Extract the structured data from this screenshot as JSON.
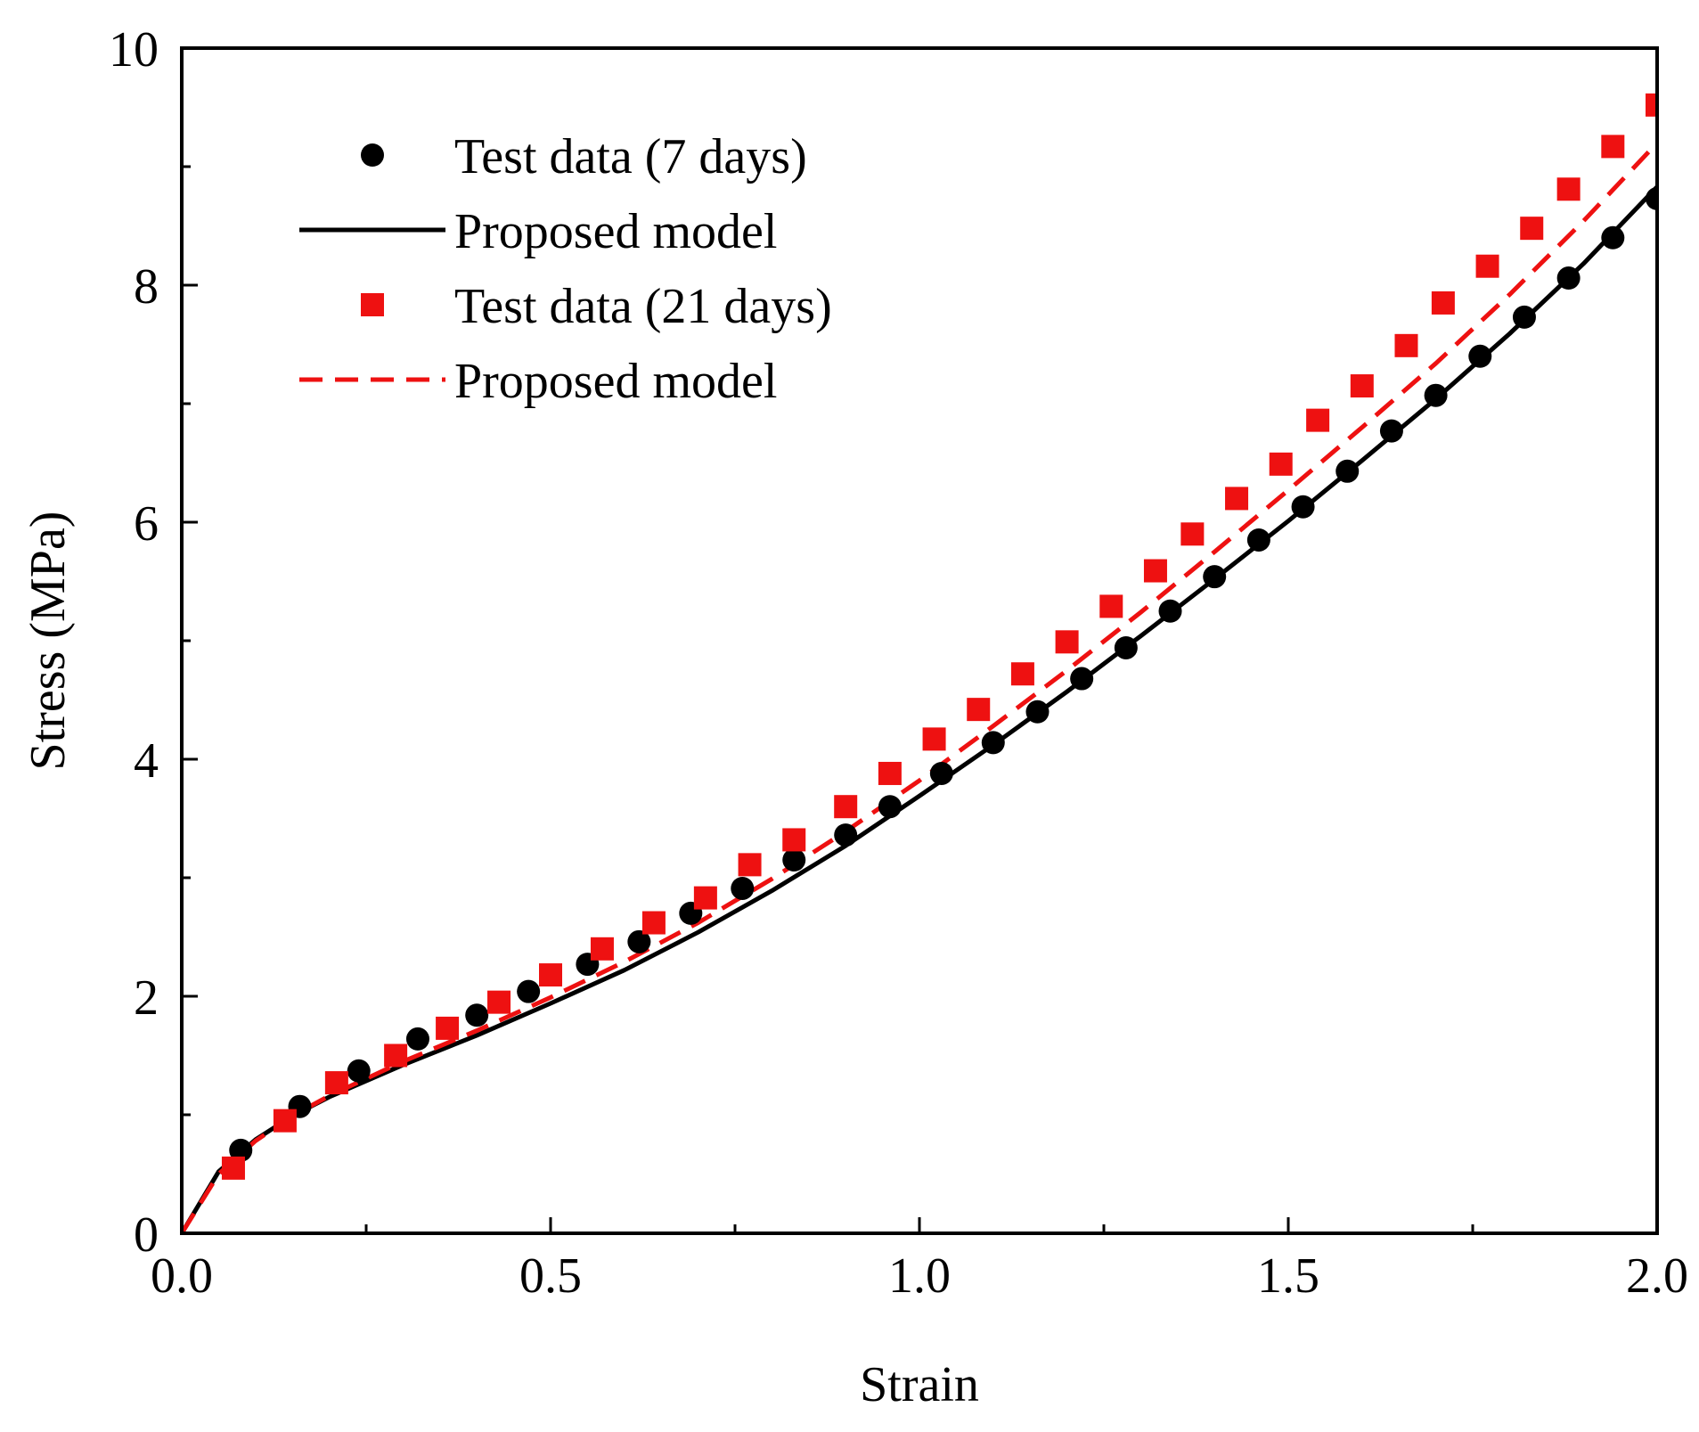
{
  "chart_data": {
    "type": "scatter",
    "title": "",
    "xlabel": "Strain",
    "ylabel": "Stress (MPa)",
    "xlim": [
      0,
      2.0
    ],
    "ylim": [
      0,
      10
    ],
    "xticks": [
      "0.0",
      "0.5",
      "1.0",
      "1.5",
      "2.0"
    ],
    "yticks": [
      "0",
      "2",
      "4",
      "6",
      "8",
      "10"
    ],
    "legend_position": "top-left",
    "grid": false,
    "series": [
      {
        "name": "Test data (7 days)",
        "kind": "marker",
        "marker": "circle",
        "color": "#000000",
        "x": [
          0.08,
          0.16,
          0.24,
          0.32,
          0.4,
          0.47,
          0.55,
          0.62,
          0.69,
          0.76,
          0.83,
          0.9,
          0.96,
          1.03,
          1.1,
          1.16,
          1.22,
          1.28,
          1.34,
          1.4,
          1.46,
          1.52,
          1.58,
          1.64,
          1.7,
          1.76,
          1.82,
          1.88,
          1.94,
          2.0
        ],
        "y": [
          0.7,
          1.07,
          1.37,
          1.64,
          1.84,
          2.04,
          2.27,
          2.46,
          2.7,
          2.91,
          3.15,
          3.36,
          3.6,
          3.88,
          4.14,
          4.4,
          4.68,
          4.94,
          5.25,
          5.54,
          5.85,
          6.13,
          6.43,
          6.77,
          7.07,
          7.4,
          7.73,
          8.06,
          8.4,
          8.73
        ]
      },
      {
        "name": "Proposed model",
        "kind": "line",
        "dash": "solid",
        "color": "#000000",
        "x": [
          0.0,
          0.05,
          0.1,
          0.15,
          0.2,
          0.3,
          0.4,
          0.5,
          0.6,
          0.7,
          0.8,
          0.9,
          1.0,
          1.1,
          1.2,
          1.3,
          1.4,
          1.5,
          1.6,
          1.7,
          1.8,
          1.9,
          2.0
        ],
        "y": [
          0.0,
          0.52,
          0.79,
          0.99,
          1.15,
          1.42,
          1.67,
          1.94,
          2.22,
          2.54,
          2.89,
          3.27,
          3.69,
          4.12,
          4.57,
          5.04,
          5.52,
          6.01,
          6.52,
          7.04,
          7.59,
          8.18,
          8.83
        ]
      },
      {
        "name": "Test data (21 days)",
        "kind": "marker",
        "marker": "square",
        "color": "#ee1111",
        "x": [
          0.07,
          0.14,
          0.21,
          0.29,
          0.36,
          0.43,
          0.5,
          0.57,
          0.64,
          0.71,
          0.77,
          0.83,
          0.9,
          0.96,
          1.02,
          1.08,
          1.14,
          1.2,
          1.26,
          1.32,
          1.37,
          1.43,
          1.49,
          1.54,
          1.6,
          1.66,
          1.71,
          1.77,
          1.83,
          1.88,
          1.94,
          2.0
        ],
        "y": [
          0.55,
          0.95,
          1.27,
          1.5,
          1.73,
          1.95,
          2.18,
          2.4,
          2.62,
          2.83,
          3.11,
          3.32,
          3.6,
          3.88,
          4.17,
          4.42,
          4.72,
          4.99,
          5.29,
          5.59,
          5.9,
          6.2,
          6.49,
          6.86,
          7.15,
          7.49,
          7.85,
          8.16,
          8.48,
          8.81,
          9.17,
          9.52
        ]
      },
      {
        "name": "Proposed model",
        "kind": "line",
        "dash": "dashed",
        "color": "#ee1111",
        "x": [
          0.0,
          0.05,
          0.1,
          0.15,
          0.2,
          0.3,
          0.4,
          0.5,
          0.6,
          0.7,
          0.8,
          0.9,
          1.0,
          1.1,
          1.2,
          1.3,
          1.4,
          1.5,
          1.6,
          1.7,
          1.8,
          1.9,
          2.0
        ],
        "y": [
          0.0,
          0.5,
          0.78,
          0.99,
          1.16,
          1.45,
          1.71,
          1.99,
          2.29,
          2.62,
          2.99,
          3.39,
          3.82,
          4.28,
          4.75,
          5.24,
          5.75,
          6.27,
          6.8,
          7.34,
          7.92,
          8.54,
          9.2
        ]
      }
    ]
  }
}
